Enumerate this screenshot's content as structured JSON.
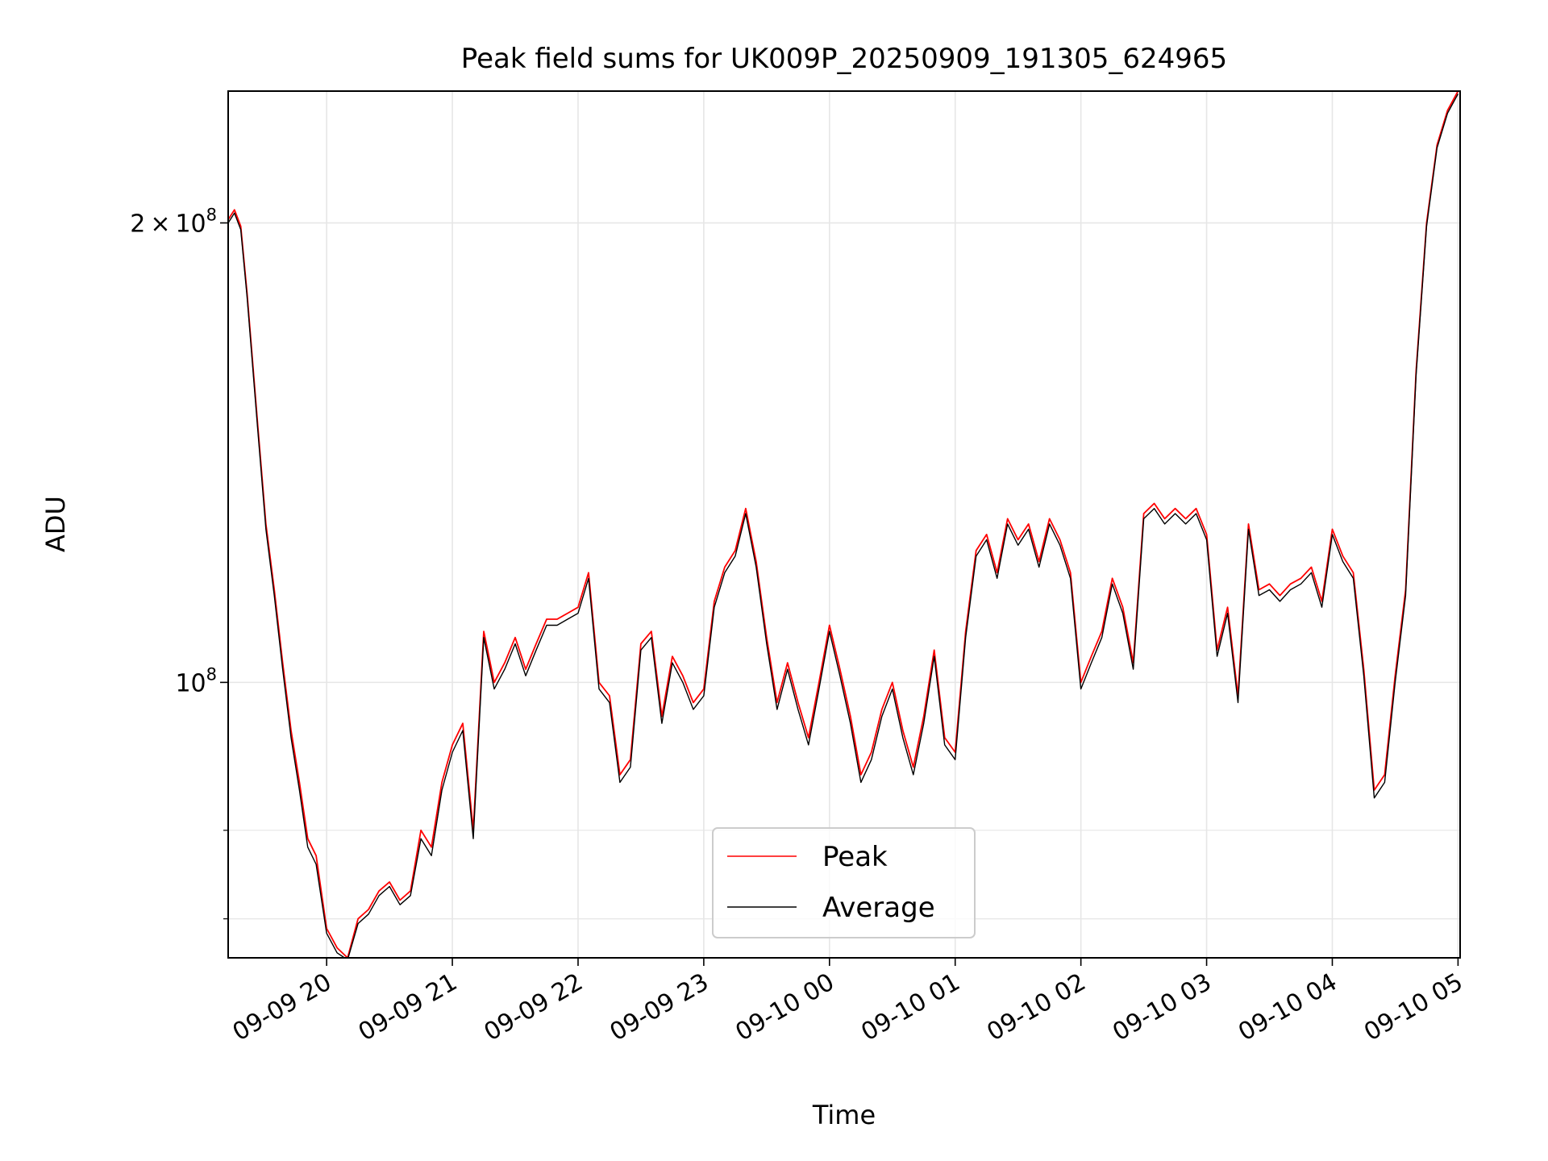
{
  "chart_data": {
    "type": "line",
    "title": "Peak field sums for UK009P_20250909_191305_624965",
    "xlabel": "Time",
    "ylabel": "ADU",
    "yscale": "log",
    "xlim": [
      "2025-09-09 19:13",
      "2025-09-10 05:01"
    ],
    "ylim": [
      66000000,
      244000000
    ],
    "x_ticks": [
      {
        "value": "2025-09-09 20:00",
        "label": "09-09 20"
      },
      {
        "value": "2025-09-09 21:00",
        "label": "09-09 21"
      },
      {
        "value": "2025-09-09 22:00",
        "label": "09-09 22"
      },
      {
        "value": "2025-09-09 23:00",
        "label": "09-09 23"
      },
      {
        "value": "2025-09-10 00:00",
        "label": "09-10 00"
      },
      {
        "value": "2025-09-10 01:00",
        "label": "09-10 01"
      },
      {
        "value": "2025-09-10 02:00",
        "label": "09-10 02"
      },
      {
        "value": "2025-09-10 03:00",
        "label": "09-10 03"
      },
      {
        "value": "2025-09-10 04:00",
        "label": "09-10 04"
      },
      {
        "value": "2025-09-10 05:00",
        "label": "09-10 05"
      }
    ],
    "y_ticks": [
      {
        "value": 100000000,
        "base": "10",
        "exp": "8",
        "mantissa": ""
      },
      {
        "value": 200000000,
        "base": "10",
        "exp": "8",
        "mantissa": "2"
      }
    ],
    "y_minor_ticks": [
      80000000,
      70000000
    ],
    "grid": true,
    "legend_position": "lower-center",
    "series": [
      {
        "name": "Peak",
        "color": "#ff0000",
        "x": [
          "2025-09-09 19:13",
          "2025-09-09 19:16",
          "2025-09-09 19:19",
          "2025-09-09 19:22",
          "2025-09-09 19:27",
          "2025-09-09 19:31",
          "2025-09-09 19:35",
          "2025-09-09 19:39",
          "2025-09-09 19:43",
          "2025-09-09 19:47",
          "2025-09-09 19:51",
          "2025-09-09 19:55",
          "2025-09-09 20:00",
          "2025-09-09 20:05",
          "2025-09-09 20:10",
          "2025-09-09 20:15",
          "2025-09-09 20:20",
          "2025-09-09 20:25",
          "2025-09-09 20:30",
          "2025-09-09 20:35",
          "2025-09-09 20:40",
          "2025-09-09 20:45",
          "2025-09-09 20:50",
          "2025-09-09 20:55",
          "2025-09-09 21:00",
          "2025-09-09 21:05",
          "2025-09-09 21:10",
          "2025-09-09 21:15",
          "2025-09-09 21:20",
          "2025-09-09 21:25",
          "2025-09-09 21:30",
          "2025-09-09 21:35",
          "2025-09-09 21:40",
          "2025-09-09 21:45",
          "2025-09-09 21:50",
          "2025-09-09 21:55",
          "2025-09-09 22:00",
          "2025-09-09 22:05",
          "2025-09-09 22:10",
          "2025-09-09 22:15",
          "2025-09-09 22:20",
          "2025-09-09 22:25",
          "2025-09-09 22:30",
          "2025-09-09 22:35",
          "2025-09-09 22:40",
          "2025-09-09 22:45",
          "2025-09-09 22:50",
          "2025-09-09 22:55",
          "2025-09-09 23:00",
          "2025-09-09 23:05",
          "2025-09-09 23:10",
          "2025-09-09 23:15",
          "2025-09-09 23:20",
          "2025-09-09 23:25",
          "2025-09-09 23:30",
          "2025-09-09 23:35",
          "2025-09-09 23:40",
          "2025-09-09 23:45",
          "2025-09-09 23:50",
          "2025-09-09 23:55",
          "2025-09-10 00:00",
          "2025-09-10 00:05",
          "2025-09-10 00:10",
          "2025-09-10 00:15",
          "2025-09-10 00:20",
          "2025-09-10 00:25",
          "2025-09-10 00:30",
          "2025-09-10 00:35",
          "2025-09-10 00:40",
          "2025-09-10 00:45",
          "2025-09-10 00:50",
          "2025-09-10 00:55",
          "2025-09-10 01:00",
          "2025-09-10 01:05",
          "2025-09-10 01:10",
          "2025-09-10 01:15",
          "2025-09-10 01:20",
          "2025-09-10 01:25",
          "2025-09-10 01:30",
          "2025-09-10 01:35",
          "2025-09-10 01:40",
          "2025-09-10 01:45",
          "2025-09-10 01:50",
          "2025-09-10 01:55",
          "2025-09-10 02:00",
          "2025-09-10 02:05",
          "2025-09-10 02:10",
          "2025-09-10 02:15",
          "2025-09-10 02:20",
          "2025-09-10 02:25",
          "2025-09-10 02:30",
          "2025-09-10 02:35",
          "2025-09-10 02:40",
          "2025-09-10 02:45",
          "2025-09-10 02:50",
          "2025-09-10 02:55",
          "2025-09-10 03:00",
          "2025-09-10 03:05",
          "2025-09-10 03:10",
          "2025-09-10 03:15",
          "2025-09-10 03:20",
          "2025-09-10 03:25",
          "2025-09-10 03:30",
          "2025-09-10 03:35",
          "2025-09-10 03:40",
          "2025-09-10 03:45",
          "2025-09-10 03:50",
          "2025-09-10 03:55",
          "2025-09-10 04:00",
          "2025-09-10 04:05",
          "2025-09-10 04:10",
          "2025-09-10 04:15",
          "2025-09-10 04:20",
          "2025-09-10 04:25",
          "2025-09-10 04:30",
          "2025-09-10 04:35",
          "2025-09-10 04:40",
          "2025-09-10 04:45",
          "2025-09-10 04:50",
          "2025-09-10 04:55",
          "2025-09-10 05:00"
        ],
        "values": [
          201000000,
          204000000,
          199000000,
          180000000,
          148000000,
          127000000,
          115000000,
          103000000,
          93000000,
          86000000,
          79000000,
          77000000,
          69000000,
          67000000,
          66000000,
          70000000,
          71000000,
          73000000,
          74000000,
          72000000,
          73000000,
          80000000,
          78000000,
          86000000,
          91000000,
          94000000,
          80000000,
          108000000,
          100000000,
          103000000,
          107000000,
          102000000,
          106000000,
          110000000,
          110000000,
          111000000,
          112000000,
          118000000,
          100000000,
          98000000,
          87000000,
          89000000,
          106000000,
          108000000,
          95000000,
          104000000,
          101000000,
          97000000,
          99000000,
          113000000,
          119000000,
          122000000,
          130000000,
          120000000,
          107000000,
          97000000,
          103000000,
          97000000,
          92000000,
          100000000,
          109000000,
          102000000,
          95000000,
          87000000,
          90000000,
          96000000,
          100000000,
          93000000,
          88000000,
          95000000,
          105000000,
          92000000,
          90000000,
          108000000,
          122000000,
          125000000,
          118000000,
          128000000,
          124000000,
          127000000,
          120000000,
          128000000,
          124000000,
          118000000,
          100000000,
          104000000,
          108000000,
          117000000,
          112000000,
          103000000,
          129000000,
          131000000,
          128000000,
          130000000,
          128000000,
          130000000,
          125000000,
          105000000,
          112000000,
          98000000,
          127000000,
          115000000,
          116000000,
          114000000,
          116000000,
          117000000,
          119000000,
          113000000,
          126000000,
          121000000,
          118000000,
          102000000,
          85000000,
          87000000,
          101000000,
          115000000,
          160000000,
          200000000,
          225000000,
          237000000,
          244000000
        ]
      },
      {
        "name": "Average",
        "color": "#000000",
        "x": [
          "2025-09-09 19:13",
          "2025-09-09 19:16",
          "2025-09-09 19:19",
          "2025-09-09 19:22",
          "2025-09-09 19:27",
          "2025-09-09 19:31",
          "2025-09-09 19:35",
          "2025-09-09 19:39",
          "2025-09-09 19:43",
          "2025-09-09 19:47",
          "2025-09-09 19:51",
          "2025-09-09 19:55",
          "2025-09-09 20:00",
          "2025-09-09 20:05",
          "2025-09-09 20:10",
          "2025-09-09 20:15",
          "2025-09-09 20:20",
          "2025-09-09 20:25",
          "2025-09-09 20:30",
          "2025-09-09 20:35",
          "2025-09-09 20:40",
          "2025-09-09 20:45",
          "2025-09-09 20:50",
          "2025-09-09 20:55",
          "2025-09-09 21:00",
          "2025-09-09 21:05",
          "2025-09-09 21:10",
          "2025-09-09 21:15",
          "2025-09-09 21:20",
          "2025-09-09 21:25",
          "2025-09-09 21:30",
          "2025-09-09 21:35",
          "2025-09-09 21:40",
          "2025-09-09 21:45",
          "2025-09-09 21:50",
          "2025-09-09 21:55",
          "2025-09-09 22:00",
          "2025-09-09 22:05",
          "2025-09-09 22:10",
          "2025-09-09 22:15",
          "2025-09-09 22:20",
          "2025-09-09 22:25",
          "2025-09-09 22:30",
          "2025-09-09 22:35",
          "2025-09-09 22:40",
          "2025-09-09 22:45",
          "2025-09-09 22:50",
          "2025-09-09 22:55",
          "2025-09-09 23:00",
          "2025-09-09 23:05",
          "2025-09-09 23:10",
          "2025-09-09 23:15",
          "2025-09-09 23:20",
          "2025-09-09 23:25",
          "2025-09-09 23:30",
          "2025-09-09 23:35",
          "2025-09-09 23:40",
          "2025-09-09 23:45",
          "2025-09-09 23:50",
          "2025-09-09 23:55",
          "2025-09-10 00:00",
          "2025-09-10 00:05",
          "2025-09-10 00:10",
          "2025-09-10 00:15",
          "2025-09-10 00:20",
          "2025-09-10 00:25",
          "2025-09-10 00:30",
          "2025-09-10 00:35",
          "2025-09-10 00:40",
          "2025-09-10 00:45",
          "2025-09-10 00:50",
          "2025-09-10 00:55",
          "2025-09-10 01:00",
          "2025-09-10 01:05",
          "2025-09-10 01:10",
          "2025-09-10 01:15",
          "2025-09-10 01:20",
          "2025-09-10 01:25",
          "2025-09-10 01:30",
          "2025-09-10 01:35",
          "2025-09-10 01:40",
          "2025-09-10 01:45",
          "2025-09-10 01:50",
          "2025-09-10 01:55",
          "2025-09-10 02:00",
          "2025-09-10 02:05",
          "2025-09-10 02:10",
          "2025-09-10 02:15",
          "2025-09-10 02:20",
          "2025-09-10 02:25",
          "2025-09-10 02:30",
          "2025-09-10 02:35",
          "2025-09-10 02:40",
          "2025-09-10 02:45",
          "2025-09-10 02:50",
          "2025-09-10 02:55",
          "2025-09-10 03:00",
          "2025-09-10 03:05",
          "2025-09-10 03:10",
          "2025-09-10 03:15",
          "2025-09-10 03:20",
          "2025-09-10 03:25",
          "2025-09-10 03:30",
          "2025-09-10 03:35",
          "2025-09-10 03:40",
          "2025-09-10 03:45",
          "2025-09-10 03:50",
          "2025-09-10 03:55",
          "2025-09-10 04:00",
          "2025-09-10 04:05",
          "2025-09-10 04:10",
          "2025-09-10 04:15",
          "2025-09-10 04:20",
          "2025-09-10 04:25",
          "2025-09-10 04:30",
          "2025-09-10 04:35",
          "2025-09-10 04:40",
          "2025-09-10 04:45",
          "2025-09-10 04:50",
          "2025-09-10 04:55",
          "2025-09-10 05:00"
        ],
        "values": [
          200000000,
          203000000,
          198000000,
          179000000,
          147000000,
          126000000,
          114000000,
          102000000,
          92000000,
          85000000,
          78000000,
          76000000,
          68500000,
          66500000,
          65800000,
          69500000,
          70500000,
          72500000,
          73500000,
          71500000,
          72500000,
          79000000,
          77000000,
          85000000,
          90000000,
          93000000,
          79000000,
          107000000,
          99000000,
          102000000,
          106000000,
          101000000,
          105000000,
          109000000,
          109000000,
          110000000,
          111000000,
          117000000,
          99000000,
          97000000,
          86000000,
          88000000,
          105000000,
          107000000,
          94000000,
          103000000,
          100000000,
          96000000,
          98000000,
          112000000,
          118000000,
          121000000,
          129000000,
          119000000,
          106000000,
          96000000,
          102000000,
          96000000,
          91000000,
          99000000,
          108000000,
          101000000,
          94000000,
          86000000,
          89000000,
          95000000,
          99000000,
          92000000,
          87000000,
          94000000,
          104000000,
          91000000,
          89000000,
          107000000,
          121000000,
          124000000,
          117000000,
          127000000,
          123000000,
          126000000,
          119000000,
          127000000,
          123000000,
          117000000,
          99000000,
          103000000,
          107000000,
          116000000,
          111000000,
          102000000,
          128000000,
          130000000,
          127000000,
          129000000,
          127000000,
          129000000,
          124000000,
          104000000,
          111000000,
          97000000,
          126000000,
          114000000,
          115000000,
          113000000,
          115000000,
          116000000,
          118000000,
          112000000,
          125000000,
          120000000,
          117000000,
          101000000,
          84000000,
          86000000,
          100000000,
          114000000,
          159000000,
          199000000,
          224000000,
          236000000,
          243000000
        ]
      }
    ]
  }
}
